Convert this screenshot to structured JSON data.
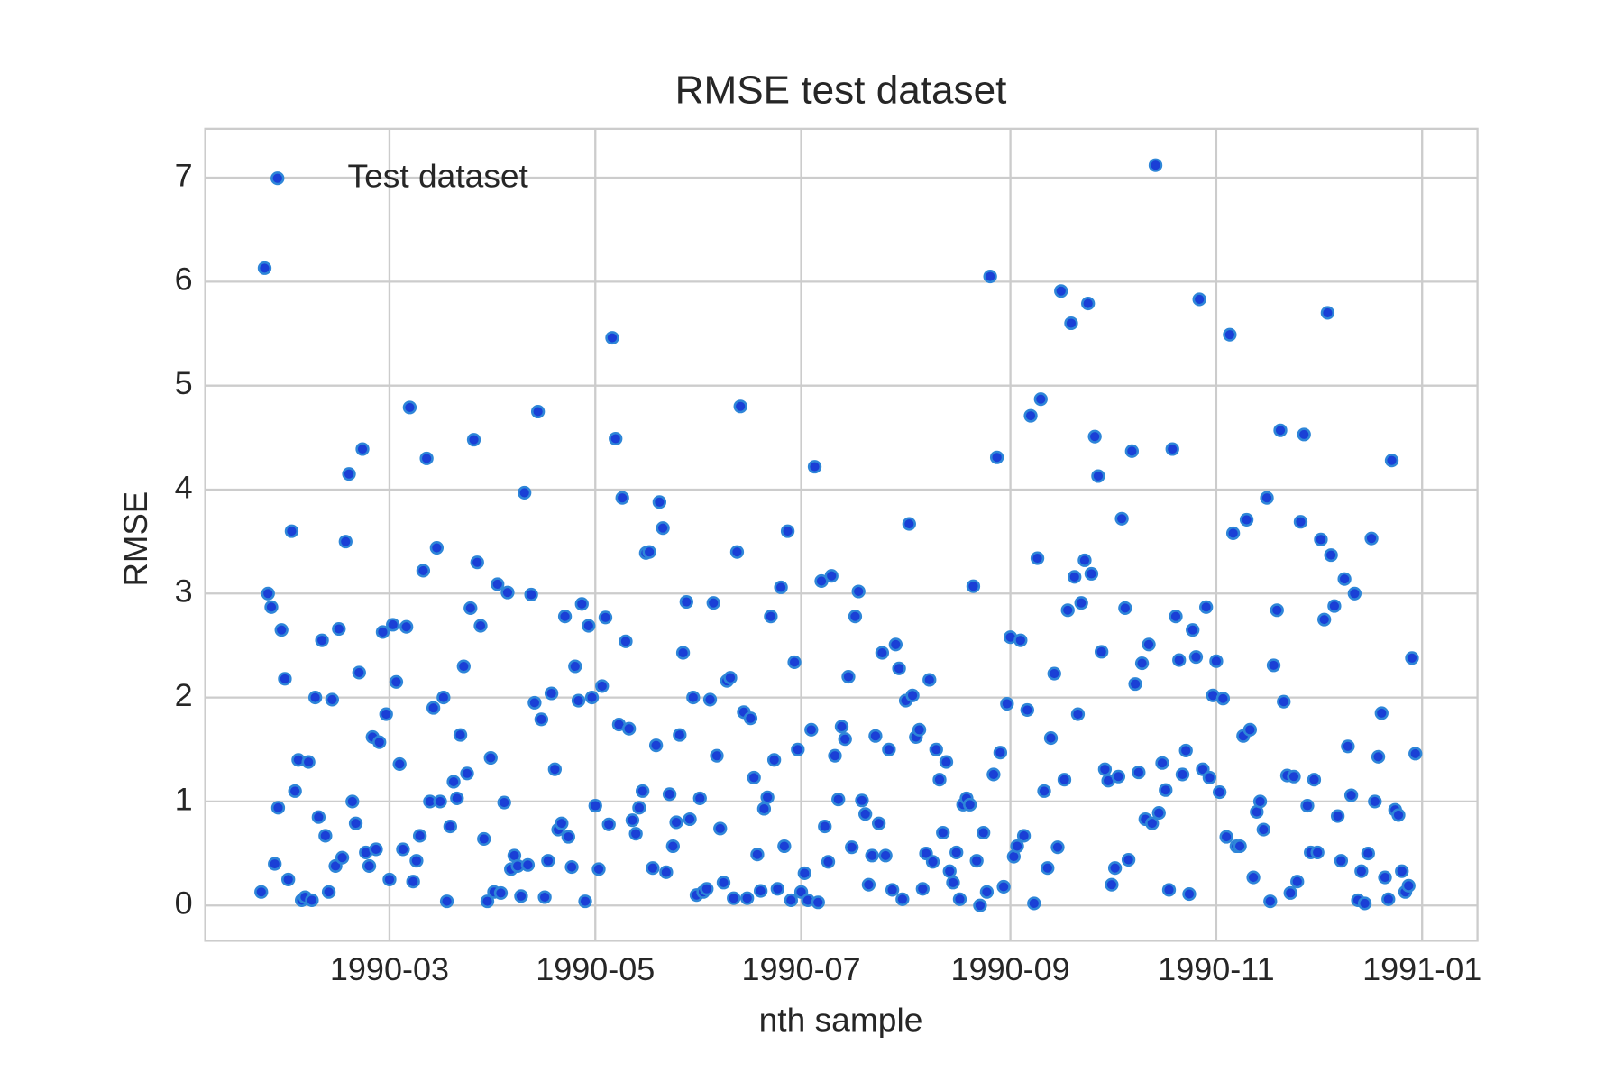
{
  "chart_data": {
    "type": "scatter",
    "title": "RMSE test dataset",
    "x_label": "nth sample",
    "y_label": "RMSE",
    "xlim": [
      4.4,
      381.4
    ],
    "ylim": [
      -0.34,
      7.47
    ],
    "xticks": [
      {
        "value": 59,
        "label": "1990-03"
      },
      {
        "value": 120,
        "label": "1990-05"
      },
      {
        "value": 181,
        "label": "1990-07"
      },
      {
        "value": 243,
        "label": "1990-09"
      },
      {
        "value": 304,
        "label": "1990-11"
      },
      {
        "value": 365,
        "label": "1991-01"
      }
    ],
    "yticks": [
      0,
      1,
      2,
      3,
      4,
      5,
      6,
      7
    ],
    "grid": true,
    "legend": "upper left",
    "series": [
      {
        "name": "Test dataset",
        "color": "#1a3fd6",
        "x": [
          21,
          22,
          23,
          24,
          25,
          26,
          27,
          28,
          29,
          30,
          31,
          32,
          33,
          34,
          35,
          36,
          37,
          38,
          39,
          40,
          41,
          42,
          43,
          44,
          45,
          46,
          47,
          48,
          49,
          50,
          51,
          52,
          53,
          54,
          55,
          56,
          57,
          58,
          59,
          60,
          61,
          62,
          63,
          64,
          65,
          66,
          67,
          68,
          69,
          70,
          71,
          72,
          73,
          74,
          75,
          76,
          77,
          78,
          79,
          80,
          81,
          82,
          83,
          84,
          85,
          86,
          87,
          88,
          89,
          90,
          91,
          92,
          93,
          94,
          95,
          96,
          97,
          98,
          99,
          100,
          101,
          102,
          103,
          104,
          105,
          106,
          107,
          108,
          109,
          110,
          111,
          112,
          113,
          114,
          115,
          116,
          117,
          118,
          119,
          120,
          121,
          122,
          123,
          124,
          125,
          126,
          127,
          128,
          129,
          130,
          131,
          132,
          133,
          134,
          135,
          136,
          137,
          138,
          139,
          140,
          141,
          142,
          143,
          144,
          145,
          146,
          147,
          148,
          149,
          150,
          151,
          152,
          153,
          154,
          155,
          156,
          157,
          158,
          159,
          160,
          161,
          162,
          163,
          164,
          165,
          166,
          167,
          168,
          169,
          170,
          171,
          172,
          173,
          174,
          175,
          176,
          177,
          178,
          179,
          180,
          181,
          182,
          183,
          184,
          185,
          186,
          187,
          188,
          189,
          190,
          191,
          192,
          193,
          194,
          195,
          196,
          197,
          198,
          199,
          200,
          201,
          202,
          203,
          204,
          205,
          206,
          207,
          208,
          209,
          210,
          211,
          212,
          213,
          214,
          215,
          216,
          217,
          218,
          219,
          220,
          221,
          222,
          223,
          224,
          225,
          226,
          227,
          228,
          229,
          230,
          231,
          232,
          233,
          234,
          235,
          236,
          237,
          238,
          239,
          240,
          241,
          242,
          243,
          244,
          245,
          246,
          247,
          248,
          249,
          250,
          251,
          252,
          253,
          254,
          255,
          256,
          257,
          258,
          259,
          260,
          261,
          262,
          263,
          264,
          265,
          266,
          267,
          268,
          269,
          270,
          271,
          272,
          273,
          274,
          275,
          276,
          277,
          278,
          279,
          280,
          281,
          282,
          283,
          284,
          285,
          286,
          287,
          288,
          289,
          290,
          291,
          292,
          293,
          294,
          295,
          296,
          297,
          298,
          299,
          300,
          301,
          302,
          303,
          304,
          305,
          306,
          307,
          308,
          309,
          310,
          311,
          312,
          313,
          314,
          315,
          316,
          317,
          318,
          319,
          320,
          321,
          322,
          323,
          324,
          325,
          326,
          327,
          328,
          329,
          330,
          331,
          332,
          333,
          334,
          335,
          336,
          337,
          338,
          339,
          340,
          341,
          342,
          343,
          344,
          345,
          346,
          347,
          348,
          349,
          350,
          351,
          352,
          353,
          354,
          355,
          356,
          357,
          358,
          359,
          360,
          361,
          362,
          363
        ],
        "values": [
          0.13,
          6.13,
          3.0,
          2.87,
          0.4,
          0.94,
          2.65,
          2.18,
          0.25,
          3.6,
          1.1,
          1.4,
          0.05,
          0.08,
          1.38,
          0.05,
          2.0,
          0.85,
          2.55,
          0.67,
          0.13,
          1.98,
          0.38,
          2.66,
          0.46,
          3.5,
          4.15,
          1.0,
          0.79,
          2.24,
          4.39,
          0.51,
          0.38,
          1.62,
          0.54,
          1.57,
          2.63,
          1.84,
          0.25,
          2.7,
          2.15,
          1.36,
          0.54,
          2.68,
          4.79,
          0.23,
          0.43,
          0.67,
          3.22,
          4.3,
          1.0,
          1.9,
          3.44,
          1.0,
          2.0,
          0.04,
          0.76,
          1.19,
          1.03,
          1.64,
          2.3,
          1.27,
          2.86,
          4.48,
          3.3,
          2.69,
          0.64,
          0.04,
          1.42,
          0.13,
          3.09,
          0.12,
          0.99,
          3.01,
          0.35,
          0.48,
          0.38,
          0.09,
          3.97,
          0.39,
          2.99,
          1.95,
          4.75,
          1.79,
          0.08,
          0.43,
          2.04,
          1.31,
          0.73,
          0.79,
          2.78,
          0.66,
          0.37,
          2.3,
          1.97,
          2.9,
          0.04,
          2.69,
          2.0,
          0.96,
          0.35,
          2.11,
          2.77,
          0.78,
          5.46,
          4.49,
          1.74,
          3.92,
          2.54,
          1.7,
          0.82,
          0.69,
          0.94,
          1.1,
          3.39,
          3.4,
          0.36,
          1.54,
          3.88,
          3.63,
          0.32,
          1.07,
          0.57,
          0.8,
          1.64,
          2.43,
          2.92,
          0.83,
          2.0,
          0.1,
          1.03,
          0.13,
          0.16,
          1.98,
          2.91,
          1.44,
          0.74,
          0.22,
          2.16,
          2.19,
          0.07,
          3.4,
          4.8,
          1.86,
          0.07,
          1.8,
          1.23,
          0.49,
          0.14,
          0.93,
          1.04,
          2.78,
          1.4,
          0.16,
          3.06,
          0.57,
          3.6,
          0.05,
          2.34,
          1.5,
          0.13,
          0.31,
          0.05,
          1.69,
          4.22,
          0.03,
          3.12,
          0.76,
          0.42,
          3.17,
          1.44,
          1.02,
          1.72,
          1.6,
          2.2,
          0.56,
          2.78,
          3.02,
          1.01,
          0.88,
          0.2,
          0.48,
          1.63,
          0.79,
          2.43,
          0.48,
          1.5,
          0.15,
          2.51,
          2.28,
          0.06,
          1.97,
          3.67,
          2.02,
          1.62,
          1.69,
          0.16,
          0.5,
          2.17,
          0.42,
          1.5,
          1.21,
          0.7,
          1.38,
          0.33,
          0.22,
          0.51,
          0.06,
          0.97,
          1.03,
          0.97,
          3.07,
          0.43,
          0.0,
          0.7,
          0.13,
          6.05,
          1.26,
          4.31,
          1.47,
          0.18,
          1.94,
          2.58,
          0.47,
          0.57,
          2.55,
          0.67,
          1.88,
          4.71,
          0.02,
          3.34,
          4.87,
          1.1,
          0.36,
          1.61,
          2.23,
          0.56,
          5.91,
          1.21,
          2.84,
          5.6,
          3.16,
          1.84,
          2.91,
          3.32,
          5.79,
          3.19,
          4.51,
          4.13,
          2.44,
          1.31,
          1.2,
          0.2,
          0.36,
          1.24,
          3.72,
          2.86,
          0.44,
          4.37,
          2.13,
          1.28,
          2.33,
          0.83,
          2.51,
          0.79,
          7.12,
          0.89,
          1.37,
          1.11,
          0.15,
          4.39,
          2.78,
          2.36,
          1.26,
          1.49,
          0.11,
          2.65,
          2.39,
          5.83,
          1.31,
          2.87,
          1.23,
          2.02,
          2.35,
          1.09,
          1.99,
          0.66,
          5.49,
          3.58,
          0.57,
          0.57,
          1.63,
          3.71,
          1.69,
          0.27,
          0.9,
          1.0,
          0.73,
          3.92,
          0.04,
          2.31,
          2.84,
          4.57,
          1.96,
          1.25,
          0.12,
          1.24,
          0.23,
          3.69,
          4.53,
          0.96,
          0.51,
          1.21,
          0.51,
          3.52,
          2.75,
          5.7,
          3.37,
          2.88,
          0.86,
          0.43,
          3.14,
          1.53,
          1.06,
          3.0,
          0.05,
          0.33,
          0.02,
          0.5,
          3.53,
          1.0,
          1.43,
          1.85,
          0.27,
          0.06,
          4.28,
          0.92,
          0.87,
          0.33,
          0.13,
          0.19,
          2.38,
          1.46
        ]
      }
    ]
  }
}
